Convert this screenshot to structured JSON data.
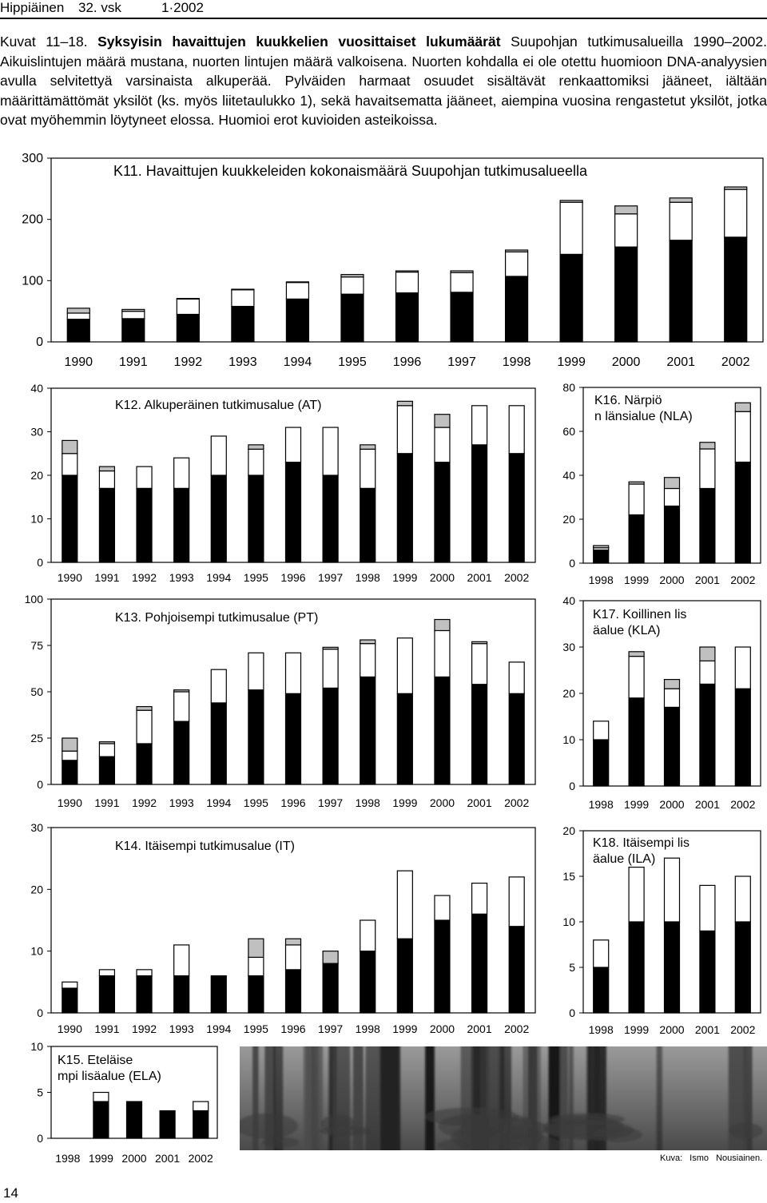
{
  "header": {
    "journal": "Hippiäinen",
    "volume": "32. vsk",
    "issue": "1·2002"
  },
  "caption": {
    "lead": "Kuvat 11–18. ",
    "bold": "Syksyisin havaittujen kuukkelien vuosittaiset lukumäärät",
    "text": " Suupohjan tutkimusalueilla 1990–2002. Aikuislintujen määrä mustana, nuorten lintujen määrä valkoisena. Nuorten kohdalla ei ole otettu huomioon DNA-analyysien avulla selvitettyä varsinaista alkuperää. Pylväiden harmaat osuudet sisältävät renkaattomiksi jääneet, iältään määrittämättömät yksilöt (ks. myös liitetaulukko 1), sekä havaitsematta jääneet, aiempina vuosina rengastetut yksilöt, jotka ovat myöhemmin löytyneet elossa. Huomioi erot kuvioiden asteikoissa."
  },
  "colors": {
    "adults": "#000000",
    "young": "#ffffff",
    "grey": "#c0c0c0"
  },
  "chart_data": [
    {
      "id": "k11",
      "type": "bar",
      "stacked": true,
      "title": "K11. Havaittujen kuukkeleiden kokonaismäärä Suupohjan tutkimusalueella",
      "categories": [
        "1990",
        "1991",
        "1992",
        "1993",
        "1994",
        "1995",
        "1996",
        "1997",
        "1998",
        "1999",
        "2000",
        "2001",
        "2002"
      ],
      "yticks": [
        "0",
        "100",
        "200",
        "300"
      ],
      "ylim": [
        0,
        300
      ],
      "series": [
        {
          "values": [
            37,
            38,
            45,
            58,
            70,
            78,
            80,
            81,
            107,
            143,
            155,
            166,
            171
          ]
        },
        {
          "values": [
            10,
            12,
            25,
            27,
            27,
            28,
            34,
            32,
            40,
            85,
            54,
            62,
            78
          ]
        },
        {
          "values": [
            8,
            3,
            1,
            1,
            1,
            4,
            2,
            3,
            3,
            3,
            13,
            7,
            4
          ]
        }
      ]
    },
    {
      "id": "k12",
      "type": "bar",
      "stacked": true,
      "title": "K12. Alkuperäinen tutkimusalue (AT)",
      "categories": [
        "1990",
        "1991",
        "1992",
        "1993",
        "1994",
        "1995",
        "1996",
        "1997",
        "1998",
        "1999",
        "2000",
        "2001",
        "2002"
      ],
      "yticks": [
        "0",
        "10",
        "20",
        "30",
        "40"
      ],
      "ylim": [
        0,
        40
      ],
      "series": [
        {
          "values": [
            20,
            17,
            17,
            17,
            20,
            20,
            23,
            20,
            17,
            25,
            23,
            27,
            25
          ]
        },
        {
          "values": [
            5,
            4,
            5,
            7,
            9,
            6,
            8,
            11,
            9,
            11,
            8,
            9,
            11
          ]
        },
        {
          "values": [
            3,
            1,
            0,
            0,
            0,
            1,
            0,
            0,
            1,
            1,
            3,
            0,
            0
          ]
        }
      ]
    },
    {
      "id": "k13",
      "type": "bar",
      "stacked": true,
      "title": "K13. Pohjoisempi tutkimusalue (PT)",
      "categories": [
        "1990",
        "1991",
        "1992",
        "1993",
        "1994",
        "1995",
        "1996",
        "1997",
        "1998",
        "1999",
        "2000",
        "2001",
        "2002"
      ],
      "yticks": [
        "0",
        "25",
        "50",
        "75",
        "100"
      ],
      "ylim": [
        0,
        100
      ],
      "series": [
        {
          "values": [
            13,
            15,
            22,
            34,
            44,
            51,
            49,
            52,
            58,
            49,
            58,
            54,
            49
          ]
        },
        {
          "values": [
            5,
            7,
            18,
            16,
            18,
            20,
            22,
            21,
            18,
            30,
            25,
            22,
            17
          ]
        },
        {
          "values": [
            7,
            1,
            2,
            1,
            0,
            0,
            0,
            1,
            2,
            0,
            6,
            1,
            0
          ]
        }
      ]
    },
    {
      "id": "k14",
      "type": "bar",
      "stacked": true,
      "title": "K14. Itäisempi tutkimusalue (IT)",
      "categories": [
        "1990",
        "1991",
        "1992",
        "1993",
        "1994",
        "1995",
        "1996",
        "1997",
        "1998",
        "1999",
        "2000",
        "2001",
        "2002"
      ],
      "yticks": [
        "0",
        "10",
        "20",
        "30"
      ],
      "ylim": [
        0,
        30
      ],
      "series": [
        {
          "values": [
            4,
            6,
            6,
            6,
            6,
            6,
            7,
            8,
            10,
            12,
            15,
            16,
            14
          ]
        },
        {
          "values": [
            1,
            1,
            1,
            5,
            0,
            3,
            4,
            0,
            5,
            11,
            4,
            5,
            8
          ]
        },
        {
          "values": [
            0,
            0,
            0,
            0,
            0,
            3,
            1,
            2,
            0,
            0,
            0,
            0,
            0
          ]
        }
      ]
    },
    {
      "id": "k15",
      "type": "bar",
      "stacked": true,
      "title": "K15. Eteläisempi lisäalue (ELA)",
      "categories": [
        "1998",
        "1999",
        "2000",
        "2001",
        "2002"
      ],
      "yticks": [
        "0",
        "5",
        "10"
      ],
      "ylim": [
        0,
        10
      ],
      "series": [
        {
          "values": [
            0,
            4,
            4,
            3,
            3
          ]
        },
        {
          "values": [
            0,
            1,
            0,
            0,
            1
          ]
        },
        {
          "values": [
            0,
            0,
            0,
            0,
            0
          ]
        }
      ]
    },
    {
      "id": "k16",
      "type": "bar",
      "stacked": true,
      "title": "K16. Närpiön länsialue (NLA)",
      "categories": [
        "1998",
        "1999",
        "2000",
        "2001",
        "2002"
      ],
      "yticks": [
        "0",
        "20",
        "40",
        "60",
        "80"
      ],
      "ylim": [
        0,
        80
      ],
      "series": [
        {
          "values": [
            6,
            22,
            26,
            34,
            46
          ]
        },
        {
          "values": [
            1,
            14,
            8,
            18,
            23
          ]
        },
        {
          "values": [
            1,
            1,
            5,
            3,
            4
          ]
        }
      ]
    },
    {
      "id": "k17",
      "type": "bar",
      "stacked": true,
      "title": "K17. Koillinen lisäalue (KLA)",
      "categories": [
        "1998",
        "1999",
        "2000",
        "2001",
        "2002"
      ],
      "yticks": [
        "0",
        "10",
        "20",
        "30",
        "40"
      ],
      "ylim": [
        0,
        40
      ],
      "series": [
        {
          "values": [
            10,
            19,
            17,
            22,
            21
          ]
        },
        {
          "values": [
            4,
            9,
            4,
            5,
            9
          ]
        },
        {
          "values": [
            0,
            1,
            2,
            3,
            0
          ]
        }
      ]
    },
    {
      "id": "k18",
      "type": "bar",
      "stacked": true,
      "title": "K18. Itäisempi lisäalue (ILA)",
      "categories": [
        "1998",
        "1999",
        "2000",
        "2001",
        "2002"
      ],
      "yticks": [
        "0",
        "5",
        "10",
        "15",
        "20"
      ],
      "ylim": [
        0,
        20
      ],
      "series": [
        {
          "values": [
            5,
            10,
            10,
            9,
            10
          ]
        },
        {
          "values": [
            3,
            6,
            7,
            5,
            5
          ]
        },
        {
          "values": [
            0,
            0,
            0,
            0,
            0
          ]
        }
      ]
    }
  ],
  "photo": {
    "credit": "Kuva: Ismo Nousiainen."
  },
  "page_number": "14"
}
